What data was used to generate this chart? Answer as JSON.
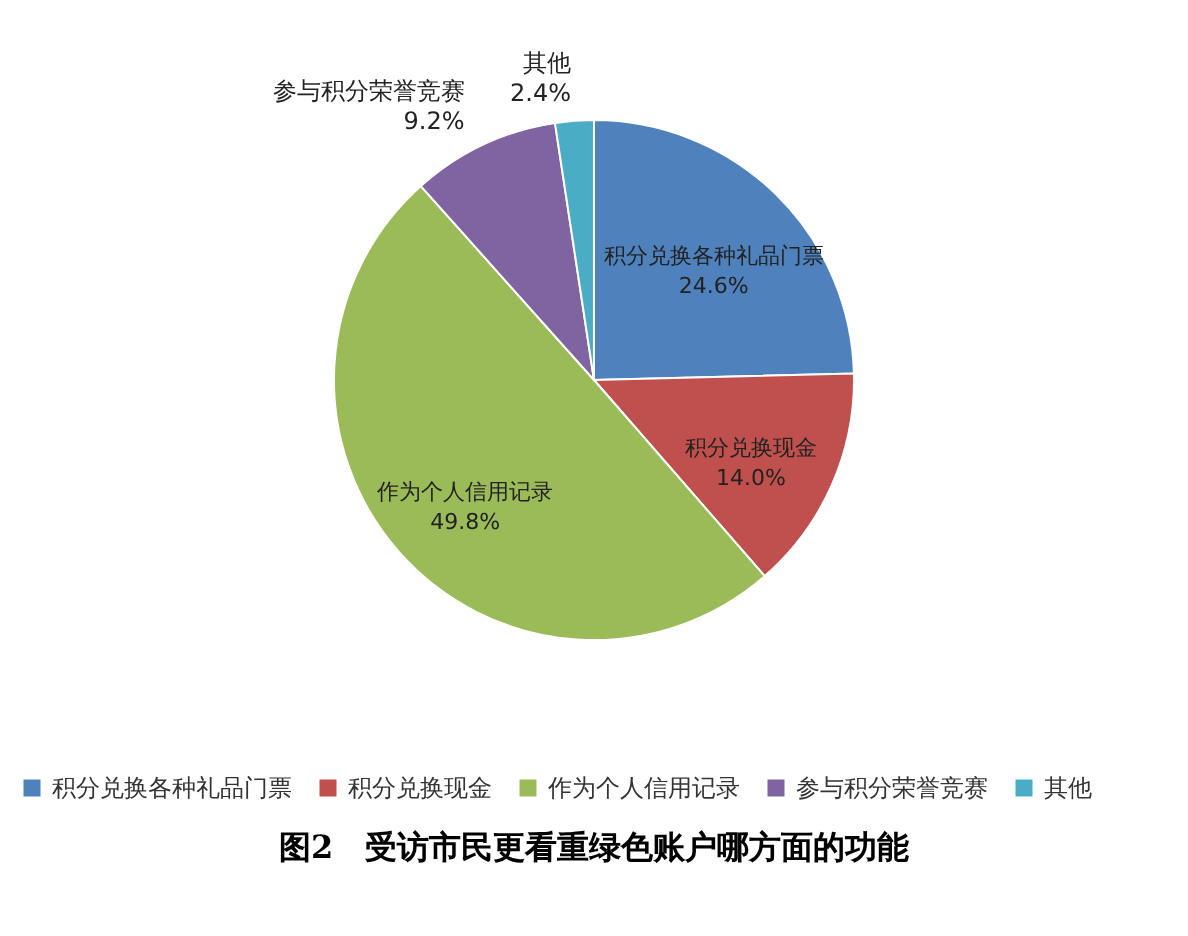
{
  "chart_data": {
    "type": "pie",
    "title": "图2　受访市民更看重绿色账户哪方面的功能",
    "categories": [
      "积分兑换各种礼品门票",
      "积分兑换现金",
      "作为个人信用记录",
      "参与积分荣誉竞赛",
      "其他"
    ],
    "values": [
      24.6,
      14.0,
      49.8,
      9.2,
      2.4
    ],
    "value_labels": [
      "24.6%",
      "14.0%",
      "49.8%",
      "9.2%",
      "2.4%"
    ],
    "colors": [
      "#4f81bd",
      "#c0504d",
      "#9bbb59",
      "#8064a2",
      "#4bacc6"
    ],
    "legend": "bottom"
  }
}
